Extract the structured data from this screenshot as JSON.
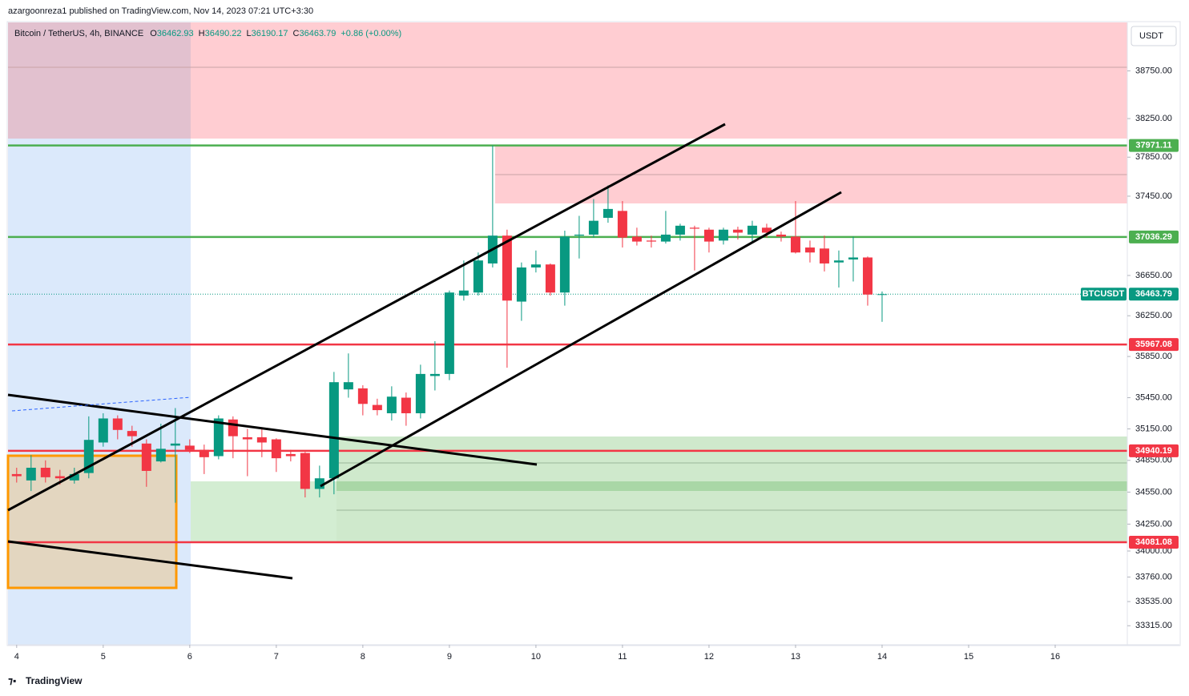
{
  "header": {
    "publisher": "azargoonreza1 published on TradingView.com, Nov 14, 2023 07:21 UTC+3:30",
    "brand": "TradingView"
  },
  "chart_data": {
    "type": "candlestick",
    "symbol": "Bitcoin / TetherUS, 4h, BINANCE",
    "change_label": "+0.86 (+0.00%)",
    "currency": "USDT",
    "ticker": "BTCUSDT",
    "up_color": "#089981",
    "down_color": "#f23645",
    "log": true,
    "open": [
      34720,
      34660,
      34780,
      34700,
      34660,
      34730,
      35020,
      35250,
      35130,
      35010,
      34840,
      34990,
      34990,
      34950,
      34890,
      35240,
      35070,
      35070,
      35050,
      34910,
      34920,
      34580,
      34680,
      35530,
      35540,
      35380,
      35300,
      35450,
      35300,
      35660,
      35680,
      36450,
      36480,
      36770,
      37050,
      36390,
      36730,
      36760,
      36480,
      37050,
      37060,
      37230,
      37300,
      37040,
      37000,
      36990,
      37060,
      37130,
      37110,
      37000,
      37110,
      37060,
      37130,
      37060,
      37040,
      36930,
      36920,
      36780,
      36810,
      36830,
      36462.93
    ],
    "high": [
      34780,
      34900,
      34850,
      34760,
      34780,
      35270,
      35300,
      35280,
      35180,
      35050,
      35200,
      35350,
      35050,
      35000,
      35280,
      35270,
      35150,
      35150,
      35060,
      34950,
      34930,
      34800,
      35700,
      35880,
      35570,
      35440,
      35560,
      35500,
      35770,
      36000,
      36500,
      36800,
      36880,
      37971,
      37110,
      36780,
      36900,
      36770,
      37100,
      37250,
      37420,
      37560,
      37400,
      37130,
      37050,
      37300,
      37170,
      37150,
      37130,
      37130,
      37140,
      37200,
      37170,
      37090,
      37400,
      37000,
      37050,
      36900,
      37040,
      36840,
      36490.22
    ],
    "low": [
      34640,
      34560,
      34640,
      34620,
      34630,
      34680,
      34980,
      35050,
      34980,
      34600,
      34830,
      34450,
      34920,
      34720,
      34860,
      34870,
      34700,
      34880,
      34740,
      34840,
      34500,
      34500,
      34530,
      35450,
      35280,
      35280,
      35230,
      35180,
      35250,
      35520,
      35620,
      36400,
      36450,
      36730,
      35740,
      36200,
      36680,
      36450,
      36350,
      36820,
      37030,
      37180,
      36930,
      36950,
      36930,
      36970,
      37000,
      36700,
      36880,
      36960,
      37010,
      36970,
      37030,
      36990,
      36870,
      36780,
      36690,
      36530,
      36590,
      36350,
      36190.17
    ],
    "close": [
      34700,
      34780,
      34690,
      34680,
      34720,
      35045,
      35250,
      35140,
      35080,
      34750,
      34960,
      35010,
      34950,
      34880,
      35250,
      35080,
      35050,
      35020,
      34870,
      34890,
      34580,
      34680,
      35600,
      35600,
      35390,
      35330,
      35460,
      35300,
      35680,
      35680,
      36480,
      36500,
      36800,
      37050,
      36400,
      36730,
      36760,
      36480,
      37040,
      37060,
      37200,
      37320,
      37030,
      36990,
      36990,
      37060,
      37150,
      37120,
      36990,
      37110,
      37080,
      37150,
      37080,
      37040,
      36880,
      36880,
      36770,
      36800,
      36830,
      36460,
      36463.79
    ],
    "xlim": [
      -0.6,
      77
    ],
    "xticks": [
      {
        "value": 0,
        "label": "4"
      },
      {
        "value": 6,
        "label": "5"
      },
      {
        "value": 12,
        "label": "6"
      },
      {
        "value": 18,
        "label": "7"
      },
      {
        "value": 24,
        "label": "8"
      },
      {
        "value": 30,
        "label": "9"
      },
      {
        "value": 36,
        "label": "10"
      },
      {
        "value": 42,
        "label": "11"
      },
      {
        "value": 48,
        "label": "12"
      },
      {
        "value": 54,
        "label": "13"
      },
      {
        "value": 60,
        "label": "14"
      },
      {
        "value": 66,
        "label": "15"
      },
      {
        "value": 72,
        "label": "16"
      }
    ],
    "ylim": [
      33143,
      39265
    ],
    "yticks": [
      {
        "value": 38750,
        "label": "38750.00"
      },
      {
        "value": 38250,
        "label": "38250.00"
      },
      {
        "value": 37850,
        "label": "37850.00"
      },
      {
        "value": 37450,
        "label": "37450.00"
      },
      {
        "value": 36650,
        "label": "36650.00"
      },
      {
        "value": 36250,
        "label": "36250.00"
      },
      {
        "value": 35850,
        "label": "35850.00"
      },
      {
        "value": 35450,
        "label": "35450.00"
      },
      {
        "value": 35150,
        "label": "35150.00"
      },
      {
        "value": 34850,
        "label": "34850.00"
      },
      {
        "value": 34550,
        "label": "34550.00"
      },
      {
        "value": 34250,
        "label": "34250.00"
      },
      {
        "value": 34000,
        "label": "34000.00"
      },
      {
        "value": 33760,
        "label": "33760.00"
      },
      {
        "value": 33535,
        "label": "33535.00"
      },
      {
        "value": 33315,
        "label": "33315.00"
      }
    ],
    "levels": [
      {
        "value": 37971.11,
        "color": "#4caf50"
      },
      {
        "value": 37036.29,
        "color": "#4caf50"
      },
      {
        "value": 35967.08,
        "color": "#f23645"
      },
      {
        "value": 34940.19,
        "color": "#f23645"
      },
      {
        "value": 34081.08,
        "color": "#f23645"
      }
    ]
  }
}
